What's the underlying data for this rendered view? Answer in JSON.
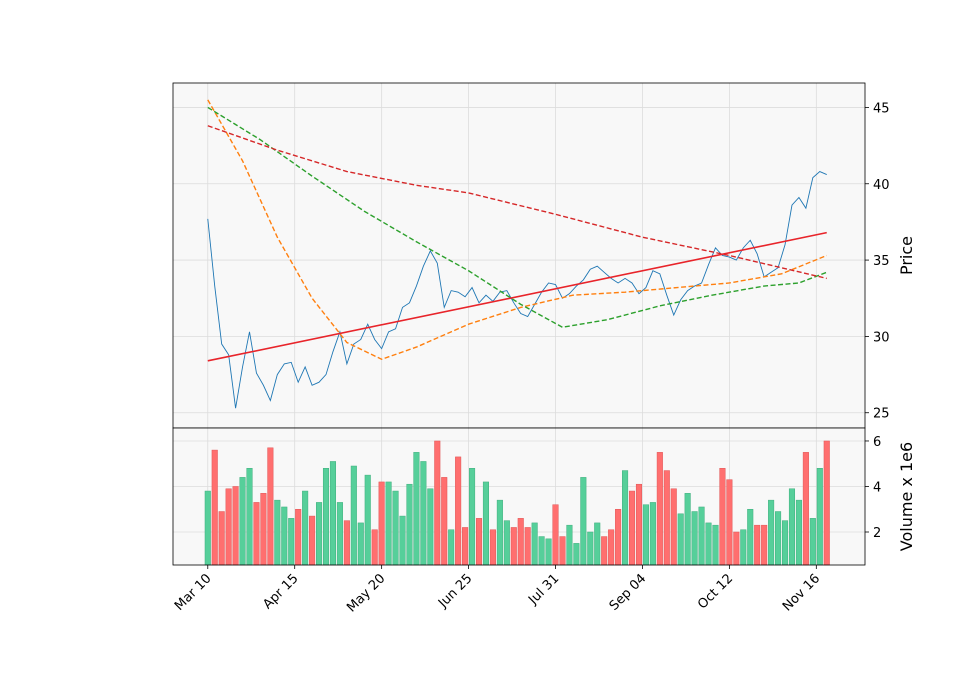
{
  "chart_data": [
    {
      "type": "line",
      "ylabel": "Price",
      "xlim": [
        -10,
        189
      ],
      "ylim": [
        24.0,
        46.6
      ],
      "yticks": [
        25,
        30,
        35,
        40,
        45
      ],
      "xticks": [
        0,
        25,
        50,
        75,
        100,
        125,
        150,
        175
      ],
      "grid": true,
      "background": "#f8f8f8",
      "series": [
        {
          "color": "#1f77b4",
          "dash": false,
          "width": 0.9,
          "x": [
            0,
            2,
            4,
            6,
            8,
            10,
            12,
            14,
            16,
            18,
            20,
            22,
            24,
            26,
            28,
            30,
            32,
            34,
            36,
            38,
            40,
            42,
            44,
            46,
            48,
            50,
            52,
            54,
            56,
            58,
            60,
            62,
            64,
            66,
            68,
            70,
            72,
            74,
            76,
            78,
            80,
            82,
            84,
            86,
            88,
            90,
            92,
            94,
            96,
            98,
            100,
            102,
            104,
            106,
            108,
            110,
            112,
            114,
            116,
            118,
            120,
            122,
            124,
            126,
            128,
            130,
            132,
            134,
            136,
            138,
            140,
            142,
            144,
            146,
            148,
            150,
            152,
            154,
            156,
            158,
            160,
            162,
            164,
            166,
            168,
            170,
            172,
            174,
            176,
            178
          ],
          "values": [
            37.7,
            33.3,
            29.5,
            28.8,
            25.3,
            28.0,
            30.3,
            27.6,
            26.8,
            25.8,
            27.5,
            28.2,
            28.3,
            27.0,
            28.0,
            26.8,
            27.0,
            27.5,
            29.0,
            30.3,
            28.2,
            29.5,
            29.8,
            30.8,
            29.8,
            29.2,
            30.3,
            30.5,
            31.9,
            32.2,
            33.3,
            34.6,
            35.6,
            34.8,
            31.9,
            33.0,
            32.9,
            32.6,
            33.2,
            32.2,
            32.7,
            32.3,
            32.9,
            33.0,
            32.2,
            31.5,
            31.3,
            32.1,
            32.9,
            33.5,
            33.4,
            32.5,
            32.8,
            33.3,
            33.7,
            34.4,
            34.6,
            34.2,
            33.8,
            33.5,
            33.8,
            33.5,
            32.8,
            33.2,
            34.3,
            34.1,
            32.7,
            31.4,
            32.4,
            33.0,
            33.3,
            33.5,
            34.7,
            35.8,
            35.3,
            35.2,
            35.0,
            35.8,
            36.3,
            35.4,
            33.9,
            34.2,
            34.5,
            36.0,
            38.6,
            39.1,
            38.4,
            40.4,
            40.8,
            40.6
          ]
        },
        {
          "color": "#ff7f0e",
          "dash": true,
          "width": 1.4,
          "x": [
            0,
            10,
            20,
            30,
            40,
            50,
            60,
            75,
            90,
            105,
            120,
            135,
            150,
            165,
            178
          ],
          "values": [
            45.5,
            41.5,
            36.5,
            32.5,
            29.6,
            28.5,
            29.3,
            30.8,
            31.9,
            32.7,
            32.9,
            33.2,
            33.5,
            34.1,
            35.3
          ]
        },
        {
          "color": "#2ca02c",
          "dash": true,
          "width": 1.4,
          "x": [
            0,
            15,
            30,
            45,
            60,
            75,
            90,
            102,
            115,
            130,
            145,
            160,
            170,
            178
          ],
          "values": [
            45.0,
            42.9,
            40.5,
            38.2,
            36.2,
            34.3,
            32.1,
            30.6,
            31.1,
            32.0,
            32.7,
            33.3,
            33.5,
            34.2
          ]
        },
        {
          "color": "#d62728",
          "dash": true,
          "width": 1.4,
          "x": [
            0,
            20,
            40,
            60,
            75,
            100,
            125,
            150,
            178
          ],
          "values": [
            43.8,
            42.2,
            40.8,
            39.9,
            39.4,
            38.0,
            36.5,
            35.3,
            33.8
          ]
        },
        {
          "color": "#e8242a",
          "dash": false,
          "width": 1.6,
          "x": [
            0,
            178
          ],
          "values": [
            28.4,
            36.8
          ]
        }
      ]
    },
    {
      "type": "bar",
      "ylabel": "Volume x 1e6",
      "xlim": [
        -10,
        189
      ],
      "ylim": [
        0.55,
        6.57
      ],
      "yticks": [
        2,
        4,
        6
      ],
      "xticks": [
        {
          "value": 0,
          "label": "Mar 10"
        },
        {
          "value": 25,
          "label": "Apr 15"
        },
        {
          "value": 50,
          "label": "May 20"
        },
        {
          "value": 75,
          "label": "Jun 25"
        },
        {
          "value": 100,
          "label": "Jul 31"
        },
        {
          "value": 125,
          "label": "Sep 04"
        },
        {
          "value": 150,
          "label": "Oct 12"
        },
        {
          "value": 175,
          "label": "Nov 16"
        }
      ],
      "grid": true,
      "background": "#f8f8f8",
      "up_color": "#56cf9a",
      "down_color": "#ff6f6f",
      "x": [
        0,
        2,
        4,
        6,
        8,
        10,
        12,
        14,
        16,
        18,
        20,
        22,
        24,
        26,
        28,
        30,
        32,
        34,
        36,
        38,
        40,
        42,
        44,
        46,
        48,
        50,
        52,
        54,
        56,
        58,
        60,
        62,
        64,
        66,
        68,
        70,
        72,
        74,
        76,
        78,
        80,
        82,
        84,
        86,
        88,
        90,
        92,
        94,
        96,
        98,
        100,
        102,
        104,
        106,
        108,
        110,
        112,
        114,
        116,
        118,
        120,
        122,
        124,
        126,
        128,
        130,
        132,
        134,
        136,
        138,
        140,
        142,
        144,
        146,
        148,
        150,
        152,
        154,
        156,
        158,
        160,
        162,
        164,
        166,
        168,
        170,
        172,
        174,
        176,
        178
      ],
      "values": [
        3.8,
        5.6,
        2.9,
        3.9,
        4.0,
        4.4,
        4.8,
        3.3,
        3.7,
        5.7,
        3.4,
        3.1,
        2.6,
        3.0,
        3.8,
        2.7,
        3.3,
        4.8,
        5.1,
        3.3,
        2.5,
        4.9,
        2.4,
        4.5,
        2.1,
        4.2,
        4.2,
        3.8,
        2.7,
        4.1,
        5.5,
        5.1,
        3.9,
        6.0,
        4.4,
        2.1,
        5.3,
        2.2,
        4.8,
        2.6,
        4.2,
        2.1,
        3.4,
        2.5,
        2.2,
        2.6,
        2.2,
        2.4,
        1.8,
        1.7,
        3.2,
        1.8,
        2.3,
        1.5,
        4.4,
        2.0,
        2.4,
        1.8,
        2.1,
        3.0,
        4.7,
        3.8,
        4.1,
        3.2,
        3.3,
        5.5,
        4.7,
        3.9,
        2.8,
        3.7,
        2.9,
        3.1,
        2.4,
        2.3,
        4.8,
        4.3,
        2.0,
        2.1,
        3.0,
        2.3,
        2.3,
        3.4,
        2.9,
        2.5,
        3.9,
        3.4,
        5.5,
        2.6,
        4.8,
        6.0
      ]
    }
  ]
}
